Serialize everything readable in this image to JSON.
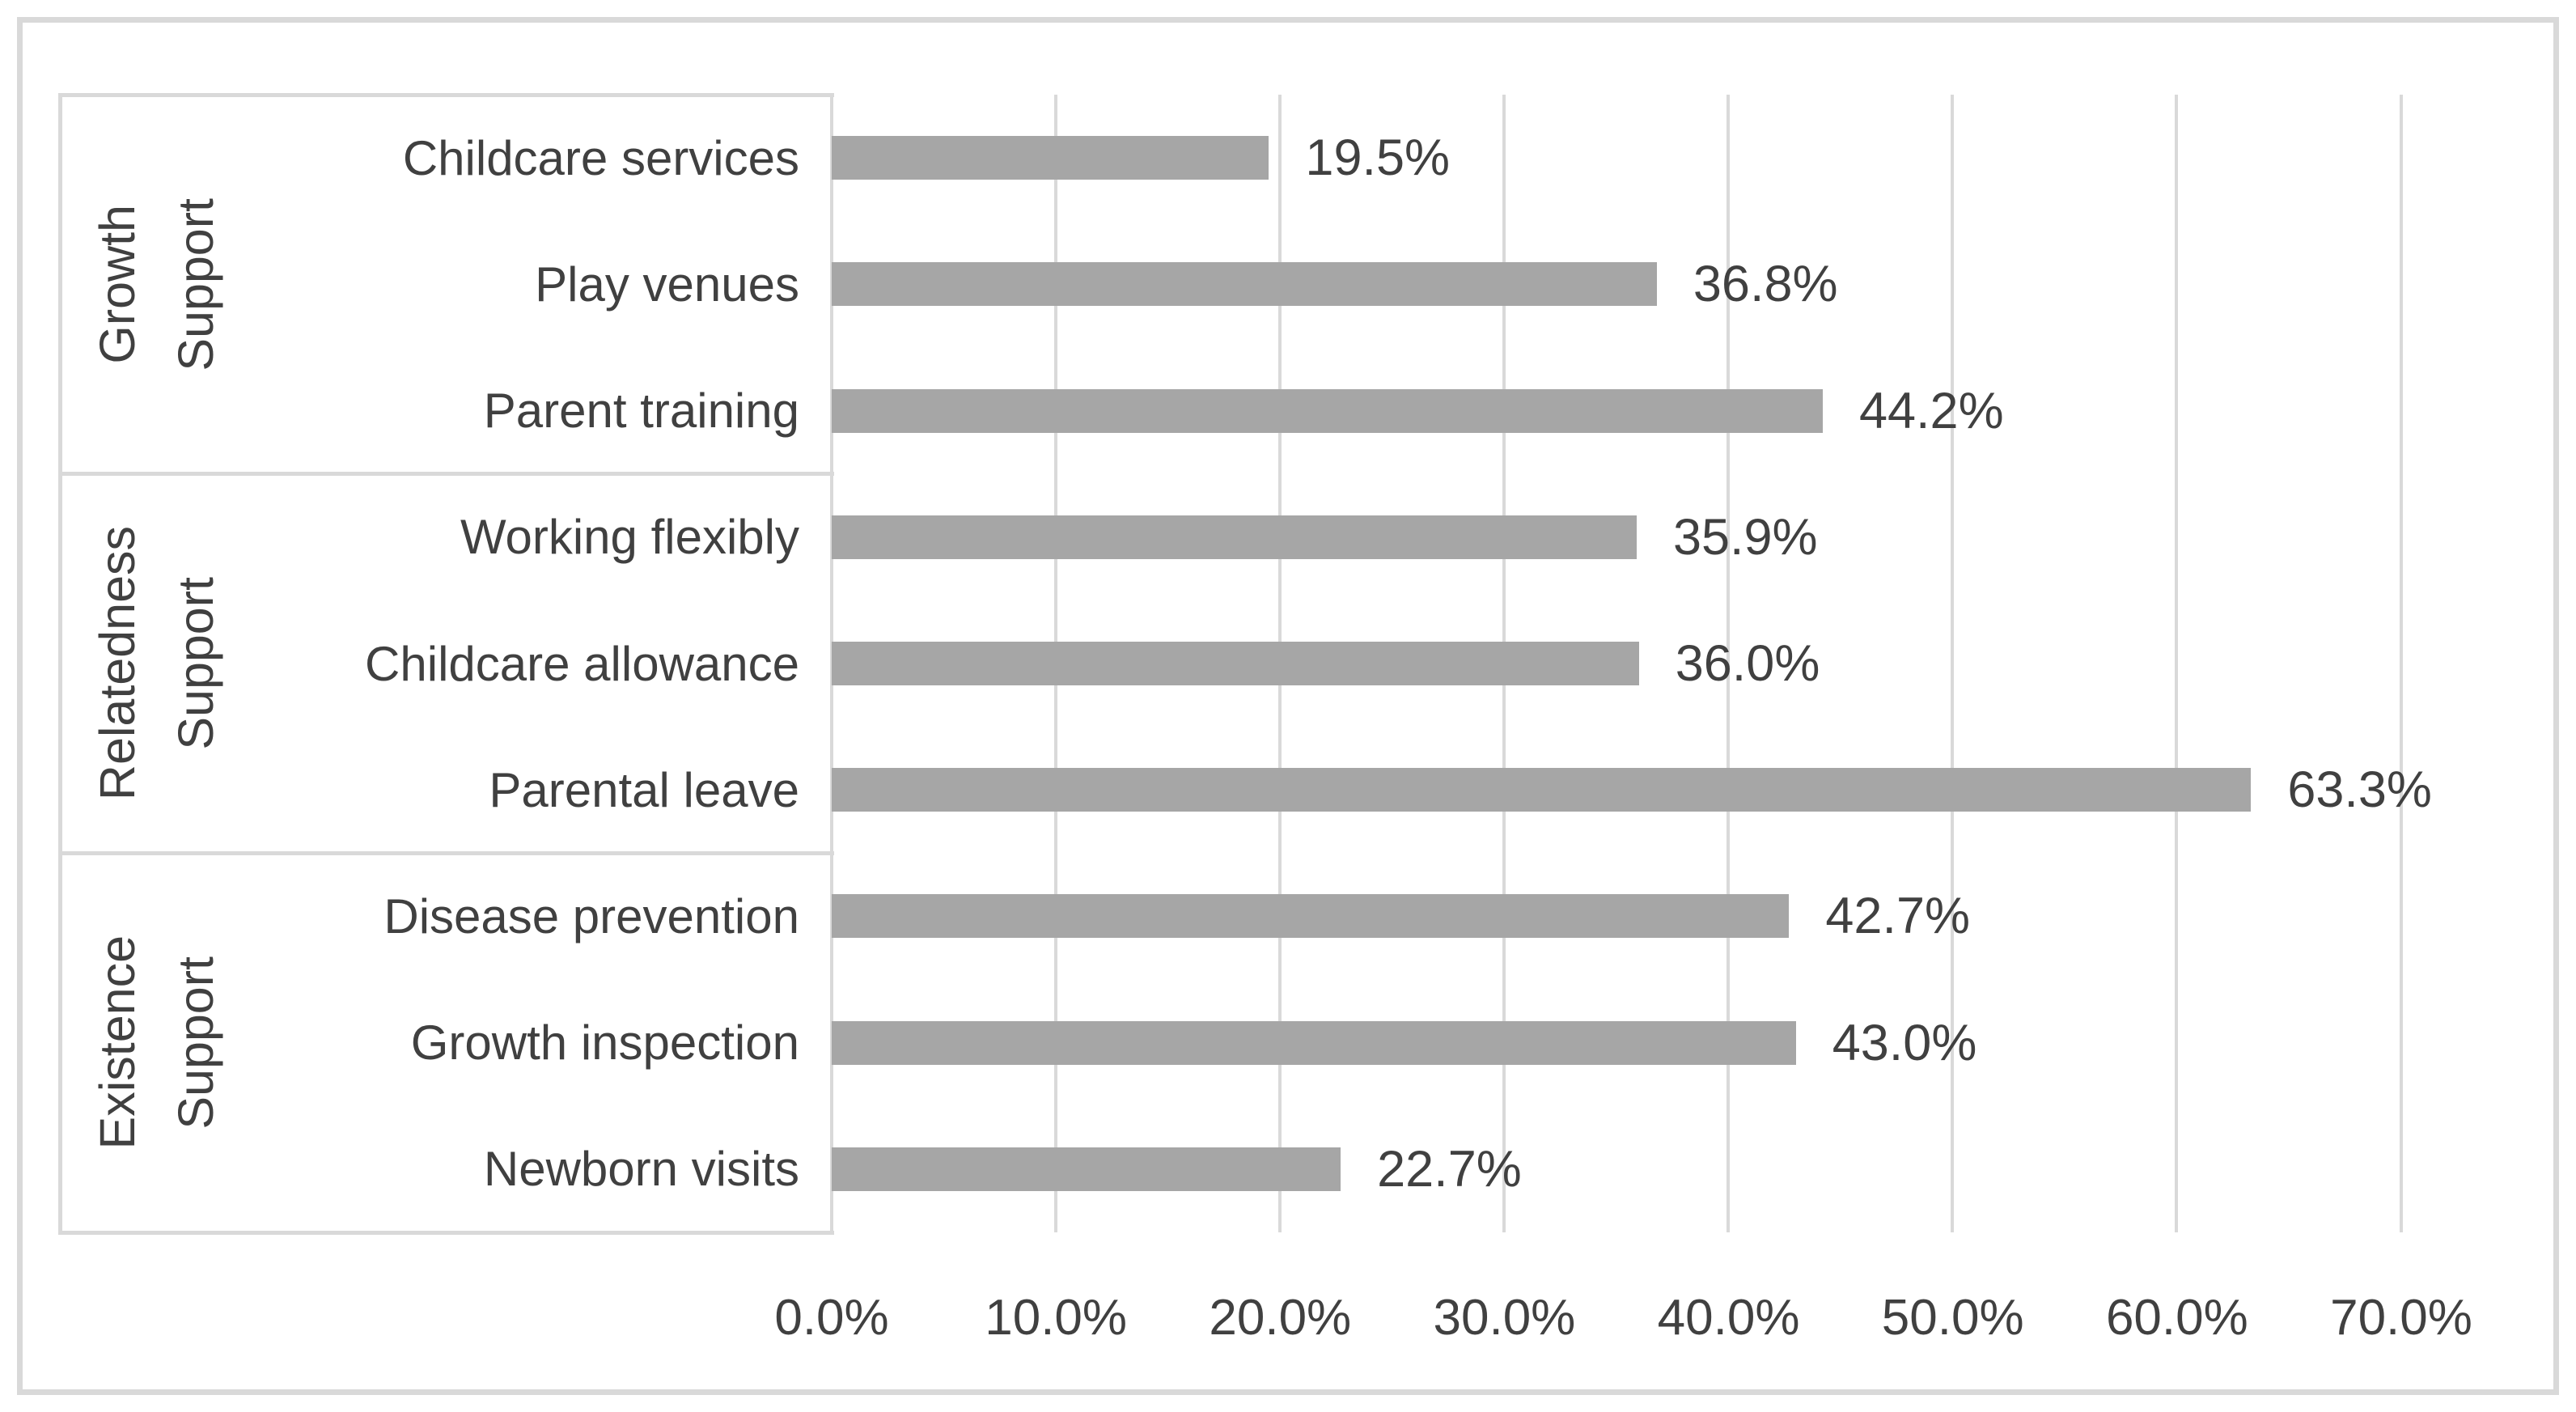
{
  "chart_data": {
    "type": "bar",
    "orientation": "horizontal",
    "title": "",
    "xlabel": "",
    "ylabel": "",
    "grid": true,
    "legend": false,
    "x_axis": {
      "min": 0,
      "max": 70,
      "step": 10,
      "ticks": [
        "0.0%",
        "10.0%",
        "20.0%",
        "30.0%",
        "40.0%",
        "50.0%",
        "60.0%",
        "70.0%"
      ]
    },
    "groups": [
      {
        "label_lines": [
          "Growth",
          "Support"
        ],
        "items": [
          {
            "category": "Childcare services",
            "value": 19.5,
            "label": "19.5%"
          },
          {
            "category": "Play venues",
            "value": 36.8,
            "label": "36.8%"
          },
          {
            "category": "Parent training",
            "value": 44.2,
            "label": "44.2%"
          }
        ]
      },
      {
        "label_lines": [
          "Relatedness",
          "Support"
        ],
        "items": [
          {
            "category": "Working flexibly",
            "value": 35.9,
            "label": "35.9%"
          },
          {
            "category": "Childcare allowance",
            "value": 36.0,
            "label": "36.0%"
          },
          {
            "category": "Parental leave",
            "value": 63.3,
            "label": "63.3%"
          }
        ]
      },
      {
        "label_lines": [
          "Existence",
          "Support"
        ],
        "items": [
          {
            "category": "Disease prevention",
            "value": 42.7,
            "label": "42.7%"
          },
          {
            "category": "Growth inspection",
            "value": 43.0,
            "label": "43.0%"
          },
          {
            "category": "Newborn visits",
            "value": 22.7,
            "label": "22.7%"
          }
        ]
      }
    ],
    "colors": {
      "bar": "#a6a6a6",
      "gridline": "#d9d9d9",
      "panel_border": "#d9d9d9",
      "outer_border": "#d9d9d9",
      "text": "#404040",
      "background": "#ffffff"
    }
  }
}
